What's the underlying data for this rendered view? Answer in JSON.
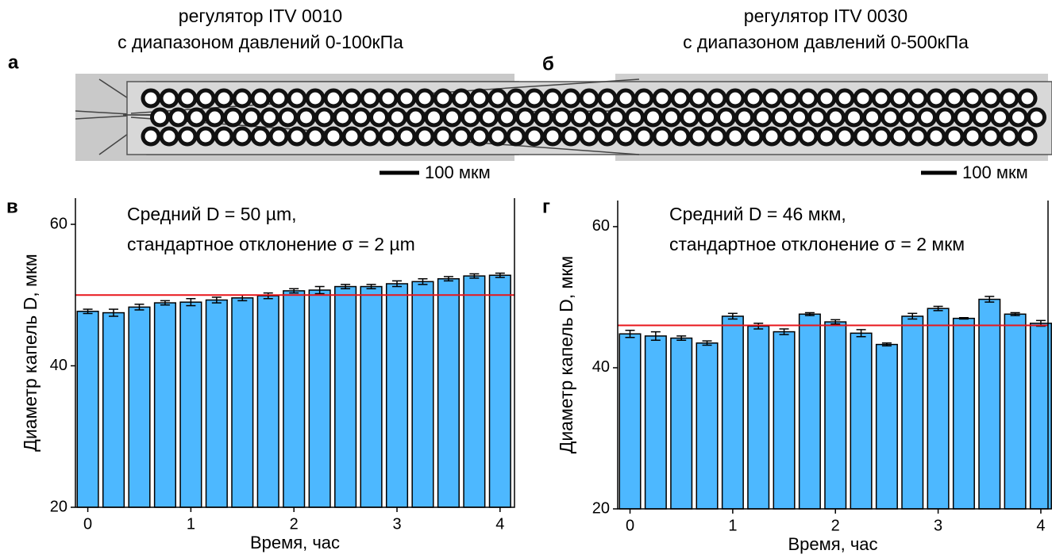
{
  "panels": [
    {
      "label": "а",
      "title": [
        "регулятор ITV 0010",
        "с диапазоном давлений 0-100кПа"
      ],
      "scale_bar": "100 мкм"
    },
    {
      "label": "б",
      "title": [
        "регулятор ITV 0030",
        "с диапазоном давлений 0-500кПа"
      ],
      "scale_bar": "100 мкм"
    }
  ],
  "chart_data": [
    {
      "type": "bar",
      "panel_label": "в",
      "annotation": [
        "Средний D = 50 µm,",
        "стандартное отклонение σ = 2 µm"
      ],
      "xlabel": "Время, час",
      "ylabel": "Диаметр капель D, мкм",
      "x": [
        0,
        0.25,
        0.5,
        0.75,
        1,
        1.25,
        1.5,
        1.75,
        2,
        2.25,
        2.5,
        2.75,
        3,
        3.25,
        3.5,
        3.75,
        4
      ],
      "values": [
        47.7,
        47.5,
        48.3,
        48.9,
        49.0,
        49.3,
        49.6,
        49.9,
        50.6,
        50.7,
        51.2,
        51.2,
        51.6,
        51.9,
        52.3,
        52.7,
        52.8
      ],
      "errors": [
        0.3,
        0.5,
        0.4,
        0.3,
        0.5,
        0.4,
        0.4,
        0.4,
        0.3,
        0.5,
        0.3,
        0.3,
        0.4,
        0.4,
        0.3,
        0.3,
        0.3
      ],
      "color": "#4db8ff",
      "reference_line": 50,
      "reference_color": "#e8161b",
      "xlim": [
        -0.12,
        4.14
      ],
      "xticks": [
        0,
        1,
        2,
        3,
        4
      ],
      "ylim": [
        20,
        63.7
      ],
      "yticks": [
        20,
        40,
        60
      ]
    },
    {
      "type": "bar",
      "panel_label": "г",
      "annotation": [
        "Средний D = 46 мкм,",
        "стандартное отклонение σ = 2 мкм"
      ],
      "xlabel": "Время, час",
      "ylabel": "Диаметр капель D, мкм",
      "x": [
        0,
        0.25,
        0.5,
        0.75,
        1,
        1.25,
        1.5,
        1.75,
        2,
        2.25,
        2.5,
        2.75,
        3,
        3.25,
        3.5,
        3.75,
        4
      ],
      "values": [
        44.8,
        44.5,
        44.2,
        43.5,
        47.3,
        45.9,
        45.1,
        47.6,
        46.5,
        44.9,
        43.3,
        47.3,
        48.4,
        47.0,
        49.7,
        47.6,
        46.3
      ],
      "errors": [
        0.5,
        0.6,
        0.3,
        0.3,
        0.4,
        0.4,
        0.4,
        0.2,
        0.3,
        0.5,
        0.2,
        0.4,
        0.3,
        0.1,
        0.4,
        0.2,
        0.4
      ],
      "color": "#4db8ff",
      "reference_line": 46,
      "reference_color": "#e8161b",
      "xlim": [
        -0.12,
        4.07
      ],
      "xticks": [
        0,
        1,
        2,
        3,
        4
      ],
      "ylim": [
        20,
        63.7
      ],
      "yticks": [
        20,
        40,
        60
      ]
    }
  ]
}
